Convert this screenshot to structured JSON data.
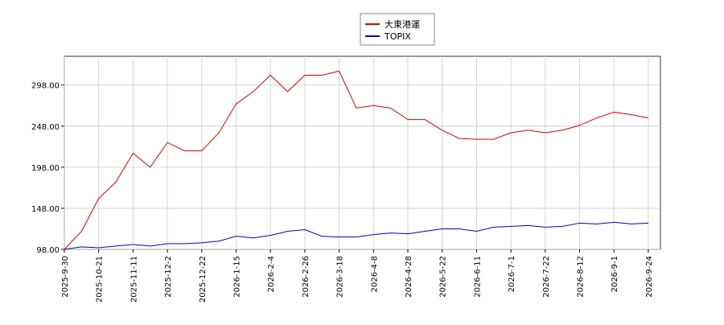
{
  "chart_data": {
    "type": "line",
    "categories": [
      "2025-9-30",
      null,
      "2025-10-21",
      null,
      "2025-11-11",
      null,
      "2025-12-2",
      null,
      "2025-12-22",
      null,
      "2026-1-15",
      null,
      "2026-2-4",
      null,
      "2026-2-26",
      null,
      "2026-3-18",
      null,
      "2026-4-8",
      null,
      "2026-4-28",
      null,
      "2026-5-22",
      null,
      "2026-6-11",
      null,
      "2026-7-1",
      null,
      "2026-7-22",
      null,
      "2026-8-12",
      null,
      "2026-9-1",
      null,
      "2026-9-24"
    ],
    "series": [
      {
        "name": "大東港運",
        "color": "#dd0000",
        "values": [
          98,
          120,
          160,
          180,
          215,
          198,
          228,
          218,
          218,
          240,
          275,
          290,
          310,
          290,
          310,
          310,
          315,
          270,
          273,
          270,
          256,
          256,
          243,
          233,
          232,
          232,
          240,
          243,
          240,
          243,
          249,
          258,
          265,
          262,
          258
        ]
      },
      {
        "name": "TOPIX",
        "color": "#0000cc",
        "values": [
          98,
          101,
          100,
          102,
          104,
          102,
          105,
          105,
          106,
          108,
          114,
          112,
          115,
          120,
          122,
          114,
          113,
          113,
          116,
          118,
          117,
          120,
          123,
          123,
          120,
          125,
          126,
          127,
          125,
          126,
          130,
          129,
          131,
          129,
          130
        ]
      }
    ],
    "ylim": [
      98,
      333
    ],
    "yticks": [
      {
        "value": 98,
        "label": "98.00"
      },
      {
        "value": 148,
        "label": "148.00"
      },
      {
        "value": 198,
        "label": "198.00"
      },
      {
        "value": 248,
        "label": "248.00"
      },
      {
        "value": 298,
        "label": "298.00"
      }
    ],
    "grid": true,
    "legend": "top"
  }
}
